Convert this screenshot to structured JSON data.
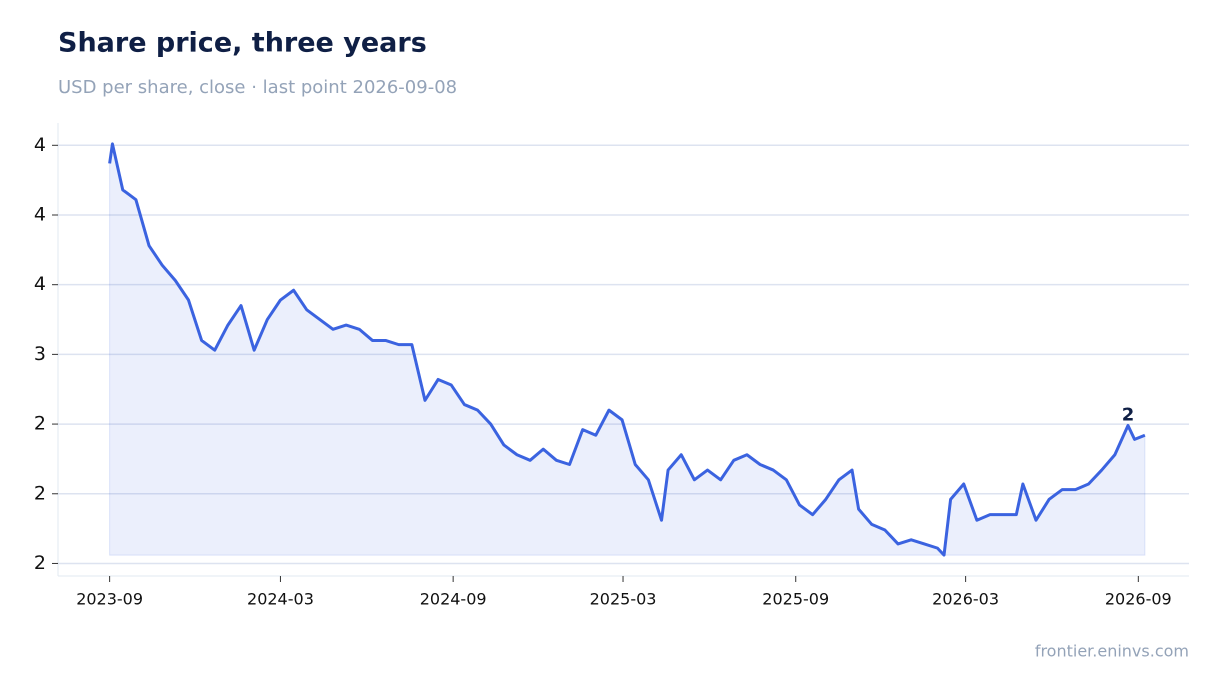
{
  "chart_data": {
    "type": "line",
    "title": "Share price, three years",
    "subtitle": "USD per share, close · last point 2026-09-08",
    "source": "frontier.eninvs.com",
    "x": [
      "2023-09-01",
      "2023-09-04",
      "2023-09-15",
      "2023-09-29",
      "2023-10-13",
      "2023-10-27",
      "2023-11-10",
      "2023-11-24",
      "2023-12-08",
      "2023-12-22",
      "2024-01-05",
      "2024-01-19",
      "2024-02-02",
      "2024-02-16",
      "2024-03-01",
      "2024-03-15",
      "2024-03-29",
      "2024-04-12",
      "2024-04-26",
      "2024-05-10",
      "2024-05-24",
      "2024-06-07",
      "2024-06-21",
      "2024-07-05",
      "2024-07-19",
      "2024-08-02",
      "2024-08-16",
      "2024-08-30",
      "2024-09-13",
      "2024-09-27",
      "2024-10-11",
      "2024-10-25",
      "2024-11-08",
      "2024-11-22",
      "2024-12-06",
      "2024-12-20",
      "2025-01-03",
      "2025-01-17",
      "2025-01-31",
      "2025-02-14",
      "2025-02-28",
      "2025-03-14",
      "2025-03-28",
      "2025-04-11",
      "2025-04-18",
      "2025-05-02",
      "2025-05-16",
      "2025-05-30",
      "2025-06-13",
      "2025-06-27",
      "2025-07-11",
      "2025-07-25",
      "2025-08-08",
      "2025-08-22",
      "2025-09-05",
      "2025-09-19",
      "2025-10-03",
      "2025-10-17",
      "2025-10-31",
      "2025-11-07",
      "2025-11-21",
      "2025-12-05",
      "2025-12-19",
      "2026-01-02",
      "2026-01-16",
      "2026-01-30",
      "2026-02-06",
      "2026-02-13",
      "2026-02-27",
      "2026-03-13",
      "2026-03-27",
      "2026-04-10",
      "2026-04-24",
      "2026-05-01",
      "2026-05-15",
      "2026-05-29",
      "2026-06-12",
      "2026-06-26",
      "2026-07-10",
      "2026-07-24",
      "2026-08-07",
      "2026-08-21",
      "2026-08-28",
      "2026-09-08"
    ],
    "series": [
      {
        "name": "Close",
        "color": "#3b63e0",
        "values": [
          4.37,
          4.51,
          4.18,
          4.11,
          3.78,
          3.64,
          3.53,
          3.39,
          3.1,
          3.03,
          3.21,
          3.35,
          3.03,
          3.25,
          3.39,
          3.46,
          3.32,
          3.25,
          3.18,
          3.21,
          3.18,
          3.1,
          3.1,
          3.07,
          3.07,
          2.67,
          2.82,
          2.78,
          2.64,
          2.6,
          2.5,
          2.35,
          2.28,
          2.24,
          2.32,
          2.24,
          2.21,
          2.46,
          2.42,
          2.6,
          2.53,
          2.21,
          2.1,
          1.81,
          2.17,
          2.28,
          2.1,
          2.17,
          2.1,
          2.24,
          2.28,
          2.21,
          2.17,
          2.1,
          1.92,
          1.85,
          1.96,
          2.1,
          2.17,
          1.89,
          1.78,
          1.74,
          1.64,
          1.67,
          1.64,
          1.61,
          1.56,
          1.96,
          2.07,
          1.81,
          1.85,
          1.85,
          1.85,
          2.07,
          1.81,
          1.96,
          2.03,
          2.03,
          2.07,
          2.17,
          2.28,
          2.49,
          2.39,
          2.42
        ]
      }
    ],
    "annotation": {
      "x": "2026-08-21",
      "value": 2.49,
      "label": "2"
    },
    "xlim": [
      "2023-07-08",
      "2026-10-25"
    ],
    "xticks": [
      "2023-09",
      "2024-03",
      "2024-09",
      "2025-03",
      "2025-09",
      "2026-03",
      "2026-09"
    ],
    "ylim": [
      1.41,
      4.66
    ],
    "yticks": [
      {
        "value": 4.5,
        "label": "4"
      },
      {
        "value": 4.0,
        "label": "4"
      },
      {
        "value": 3.5,
        "label": "4"
      },
      {
        "value": 3.0,
        "label": "3"
      },
      {
        "value": 2.5,
        "label": "2"
      },
      {
        "value": 2.0,
        "label": "2"
      },
      {
        "value": 1.5,
        "label": "2"
      }
    ],
    "grid": true
  }
}
